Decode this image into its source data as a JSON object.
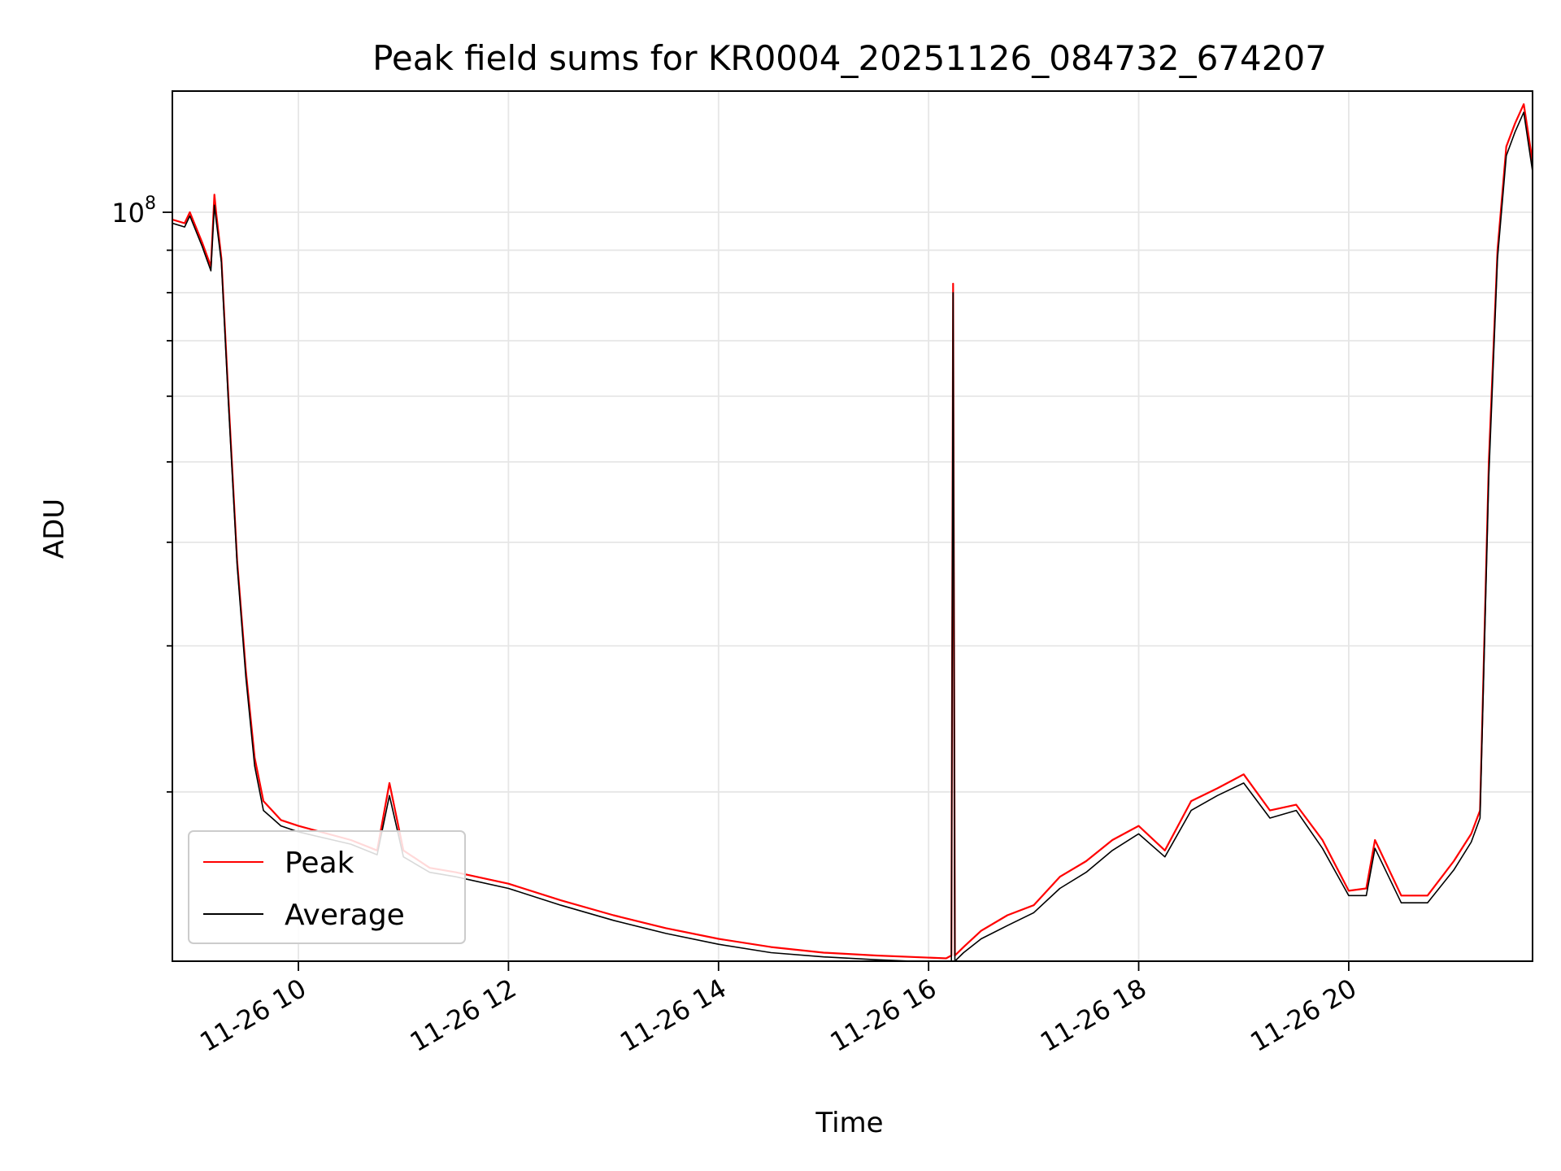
{
  "chart_data": {
    "type": "line",
    "title": "Peak field sums for KR0004_20251126_084732_674207",
    "xlabel": "Time",
    "ylabel": "ADU",
    "y_scale": "log",
    "x_range": [
      "11-26 08:48",
      "11-26 21:45"
    ],
    "y_range": [
      12500000,
      140000000
    ],
    "x_tick_labels": [
      "11-26 10",
      "11-26 12",
      "11-26 14",
      "11-26 16",
      "11-26 18",
      "11-26 20"
    ],
    "x_ticks": [
      "11-26 10:00",
      "11-26 12:00",
      "11-26 14:00",
      "11-26 16:00",
      "11-26 18:00",
      "11-26 20:00"
    ],
    "y_major_tick_label": {
      "base": "10",
      "exponent": "8"
    },
    "y_major_tick": 100000000,
    "y_minor_ticks": [
      20000000,
      30000000,
      40000000,
      50000000,
      60000000,
      70000000,
      80000000,
      90000000
    ],
    "grid": true,
    "legend": {
      "placement": "lower-left"
    },
    "series": [
      {
        "name": "Peak",
        "color": "#ff0000",
        "x": [
          "11-26 08:48",
          "11-26 08:55",
          "11-26 08:58",
          "11-26 09:05",
          "11-26 09:10",
          "11-26 09:12",
          "11-26 09:13",
          "11-26 09:16",
          "11-26 09:20",
          "11-26 09:25",
          "11-26 09:30",
          "11-26 09:35",
          "11-26 09:40",
          "11-26 09:45",
          "11-26 09:50",
          "11-26 10:00",
          "11-26 10:30",
          "11-26 10:45",
          "11-26 10:52",
          "11-26 11:00",
          "11-26 11:15",
          "11-26 11:30",
          "11-26 12:00",
          "11-26 12:30",
          "11-26 13:00",
          "11-26 13:30",
          "11-26 14:00",
          "11-26 14:30",
          "11-26 15:00",
          "11-26 15:30",
          "11-26 16:10",
          "11-26 16:13",
          "11-26 16:14",
          "11-26 16:15",
          "11-26 16:20",
          "11-26 16:30",
          "11-26 16:45",
          "11-26 17:00",
          "11-26 17:15",
          "11-26 17:30",
          "11-26 17:45",
          "11-26 18:00",
          "11-26 18:15",
          "11-26 18:30",
          "11-26 18:45",
          "11-26 19:00",
          "11-26 19:15",
          "11-26 19:30",
          "11-26 19:45",
          "11-26 20:00",
          "11-26 20:10",
          "11-26 20:15",
          "11-26 20:30",
          "11-26 20:45",
          "11-26 21:00",
          "11-26 21:10",
          "11-26 21:15",
          "11-26 21:20",
          "11-26 21:25",
          "11-26 21:30",
          "11-26 21:35",
          "11-26 21:40",
          "11-26 21:45"
        ],
        "y": [
          98000000,
          97000000,
          100000000,
          92000000,
          86000000,
          105000000,
          100000000,
          88000000,
          60000000,
          38000000,
          28000000,
          22000000,
          19500000,
          19000000,
          18500000,
          18200000,
          17500000,
          17000000,
          20500000,
          17000000,
          16200000,
          16000000,
          15500000,
          14800000,
          14200000,
          13700000,
          13300000,
          13000000,
          12800000,
          12700000,
          12600000,
          12700000,
          82000000,
          12700000,
          13000000,
          13600000,
          14200000,
          14600000,
          15800000,
          16500000,
          17500000,
          18200000,
          17000000,
          19500000,
          20200000,
          21000000,
          19000000,
          19300000,
          17500000,
          15200000,
          15300000,
          17500000,
          15000000,
          15000000,
          16500000,
          17800000,
          19000000,
          50000000,
          90000000,
          120000000,
          128000000,
          135000000,
          115000000
        ]
      },
      {
        "name": "Average",
        "color": "#000000",
        "x": [
          "11-26 08:48",
          "11-26 08:55",
          "11-26 08:58",
          "11-26 09:05",
          "11-26 09:10",
          "11-26 09:12",
          "11-26 09:13",
          "11-26 09:16",
          "11-26 09:20",
          "11-26 09:25",
          "11-26 09:30",
          "11-26 09:35",
          "11-26 09:40",
          "11-26 09:45",
          "11-26 09:50",
          "11-26 10:00",
          "11-26 10:30",
          "11-26 10:45",
          "11-26 10:52",
          "11-26 11:00",
          "11-26 11:15",
          "11-26 11:30",
          "11-26 12:00",
          "11-26 12:30",
          "11-26 13:00",
          "11-26 13:30",
          "11-26 14:00",
          "11-26 14:30",
          "11-26 15:00",
          "11-26 15:30",
          "11-26 16:10",
          "11-26 16:13",
          "11-26 16:14",
          "11-26 16:15",
          "11-26 16:20",
          "11-26 16:30",
          "11-26 16:45",
          "11-26 17:00",
          "11-26 17:15",
          "11-26 17:30",
          "11-26 17:45",
          "11-26 18:00",
          "11-26 18:15",
          "11-26 18:30",
          "11-26 18:45",
          "11-26 19:00",
          "11-26 19:15",
          "11-26 19:30",
          "11-26 19:45",
          "11-26 20:00",
          "11-26 20:10",
          "11-26 20:15",
          "11-26 20:30",
          "11-26 20:45",
          "11-26 21:00",
          "11-26 21:10",
          "11-26 21:15",
          "11-26 21:20",
          "11-26 21:25",
          "11-26 21:30",
          "11-26 21:35",
          "11-26 21:40",
          "11-26 21:45"
        ],
        "y": [
          97000000,
          96000000,
          99000000,
          91000000,
          85000000,
          102000000,
          98000000,
          87000000,
          59000000,
          37500000,
          27500000,
          21500000,
          19000000,
          18600000,
          18200000,
          17900000,
          17300000,
          16800000,
          19800000,
          16700000,
          16000000,
          15800000,
          15300000,
          14600000,
          14000000,
          13500000,
          13100000,
          12800000,
          12650000,
          12550000,
          12450000,
          12500000,
          80000000,
          12500000,
          12800000,
          13300000,
          13800000,
          14300000,
          15300000,
          16000000,
          17000000,
          17800000,
          16700000,
          19000000,
          19800000,
          20500000,
          18600000,
          19000000,
          17100000,
          15000000,
          15000000,
          17100000,
          14700000,
          14700000,
          16100000,
          17400000,
          18600000,
          48000000,
          88000000,
          117000000,
          125000000,
          132000000,
          112000000
        ]
      }
    ]
  }
}
